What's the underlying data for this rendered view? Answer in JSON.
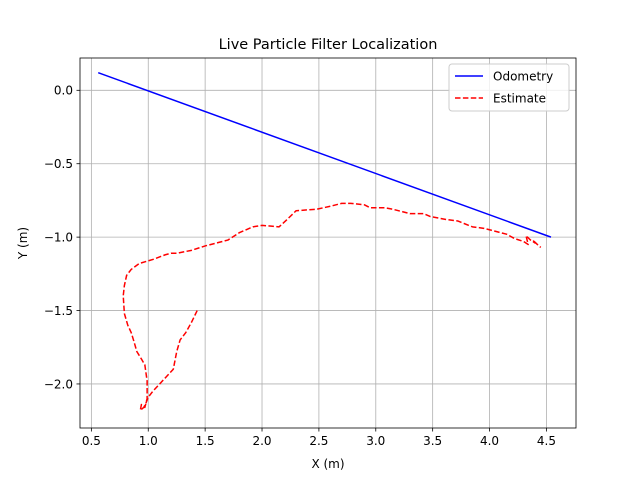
{
  "chart_data": {
    "type": "line",
    "title": "Live Particle Filter Localization",
    "xlabel": "X (m)",
    "ylabel": "Y (m)",
    "xlim": [
      0.4,
      4.76
    ],
    "ylim": [
      -2.3,
      0.22
    ],
    "xticks": [
      0.5,
      1.0,
      1.5,
      2.0,
      2.5,
      3.0,
      3.5,
      4.0,
      4.5
    ],
    "xtick_labels": [
      "0.5",
      "1.0",
      "1.5",
      "2.0",
      "2.5",
      "3.0",
      "3.5",
      "4.0",
      "4.5"
    ],
    "yticks": [
      0.0,
      -0.5,
      -1.0,
      -1.5,
      -2.0
    ],
    "ytick_labels": [
      "0.0",
      "−0.5",
      "−1.0",
      "−1.5",
      "−2.0"
    ],
    "grid": true,
    "legend_position": "top-right",
    "series": [
      {
        "name": "Odometry",
        "color": "#0000ff",
        "style": "solid",
        "x": [
          0.56,
          4.54
        ],
        "y": [
          0.12,
          -1.0
        ]
      },
      {
        "name": "Estimate",
        "color": "#ff0000",
        "style": "dashed",
        "x": [
          1.43,
          1.38,
          1.33,
          1.28,
          1.25,
          1.22,
          1.16,
          1.1,
          1.04,
          1.0,
          0.98,
          0.96,
          0.93,
          0.94,
          0.97,
          0.99,
          0.99,
          0.97,
          0.94,
          0.9,
          0.87,
          0.85,
          0.82,
          0.79,
          0.78,
          0.79,
          0.81,
          0.85,
          0.92,
          1.05,
          1.15,
          1.2,
          1.25,
          1.38,
          1.5,
          1.7,
          1.8,
          1.92,
          2.0,
          2.15,
          2.22,
          2.3,
          2.48,
          2.6,
          2.7,
          2.78,
          2.9,
          2.95,
          3.08,
          3.15,
          3.3,
          3.42,
          3.48,
          3.62,
          3.72,
          3.85,
          3.95,
          4.05,
          4.15,
          4.22,
          4.3,
          4.34,
          4.32,
          4.36,
          4.4,
          4.38,
          4.42,
          4.45
        ],
        "y": [
          -1.5,
          -1.58,
          -1.65,
          -1.7,
          -1.78,
          -1.9,
          -1.95,
          -2.0,
          -2.05,
          -2.09,
          -2.13,
          -2.16,
          -2.18,
          -2.14,
          -2.16,
          -2.1,
          -1.98,
          -1.87,
          -1.83,
          -1.78,
          -1.7,
          -1.65,
          -1.6,
          -1.52,
          -1.4,
          -1.33,
          -1.26,
          -1.22,
          -1.18,
          -1.15,
          -1.12,
          -1.11,
          -1.11,
          -1.09,
          -1.06,
          -1.02,
          -0.97,
          -0.93,
          -0.92,
          -0.93,
          -0.88,
          -0.82,
          -0.81,
          -0.79,
          -0.77,
          -0.77,
          -0.78,
          -0.8,
          -0.8,
          -0.81,
          -0.84,
          -0.84,
          -0.86,
          -0.88,
          -0.89,
          -0.93,
          -0.94,
          -0.96,
          -0.98,
          -1.01,
          -1.03,
          -1.05,
          -0.99,
          -1.02,
          -1.04,
          -1.02,
          -1.05,
          -1.07
        ]
      }
    ]
  }
}
